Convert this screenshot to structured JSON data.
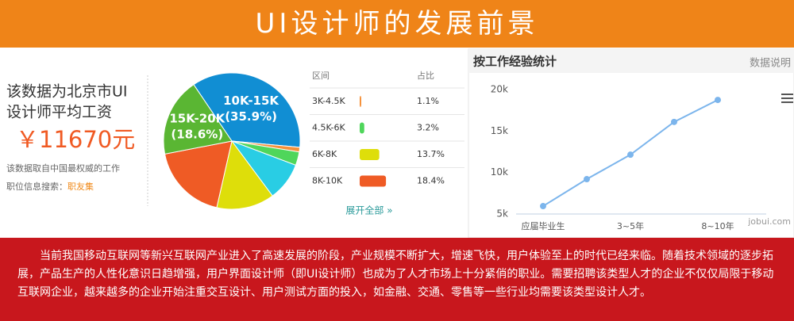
{
  "banner": {
    "title": "UI设计师的发展前景"
  },
  "salary": {
    "caption_lines": [
      "该数据为北京市UI",
      "设计师平均工资"
    ],
    "amount": "￥11670元",
    "source_lines": [
      "该数据取自中国最权威的工作",
      "职位信息搜索："
    ],
    "source_link": "职友集"
  },
  "chart_data": [
    {
      "type": "pie",
      "categories": [
        "10K-15K",
        "3K-4.5K",
        "4.5K-6K",
        null,
        "6K-8K",
        "8K-10K",
        "15K-20K"
      ],
      "values": [
        35.9,
        1.1,
        3.2,
        9.1,
        13.7,
        18.4,
        18.6
      ],
      "value_labels": [
        "(35.9%)",
        "1.1%",
        "3.2%",
        null,
        "13.7%",
        "18.4%",
        "(18.6%)"
      ],
      "colors": [
        "#118ed3",
        "#f5913a",
        "#4fd65b",
        "#29cde4",
        "#dede0a",
        "#ef5b25",
        "#5ab633"
      ]
    },
    {
      "type": "line",
      "title": "按工作经验统计",
      "note": "数据说明",
      "watermark": "jobui.com",
      "categories": [
        "应届毕业生",
        null,
        "3~5年",
        null,
        "8~10年"
      ],
      "values": [
        5950,
        9200,
        12150,
        16100,
        18750
      ],
      "color": "#7cb5ec",
      "ylim": [
        5000,
        20000
      ],
      "yticks": [
        {
          "value": 5000,
          "label": "5k"
        },
        {
          "value": 10000,
          "label": "10k"
        },
        {
          "value": 15000,
          "label": "15k"
        },
        {
          "value": 20000,
          "label": "20k"
        }
      ]
    }
  ],
  "legend_table": {
    "headers": [
      "区间",
      "占比"
    ],
    "more": "展开全部 »"
  },
  "paragraph": "当前我国移动互联网等新兴互联网产业进入了高速发展的阶段，产业规模不断扩大，增速飞快，用户体验至上的时代已经来临。随着技术领域的逐步拓展，产品生产的人性化意识日趋增强，用户界面设计师（即UI设计师）也成为了人才市场上十分紧俏的职业。需要招聘该类型人才的企业不仅仅局限于移动互联网企业，越来越多的企业开始注重交互设计、用户测试方面的投入，如金融、交通、零售等一些行业均需要该类型设计人才。"
}
